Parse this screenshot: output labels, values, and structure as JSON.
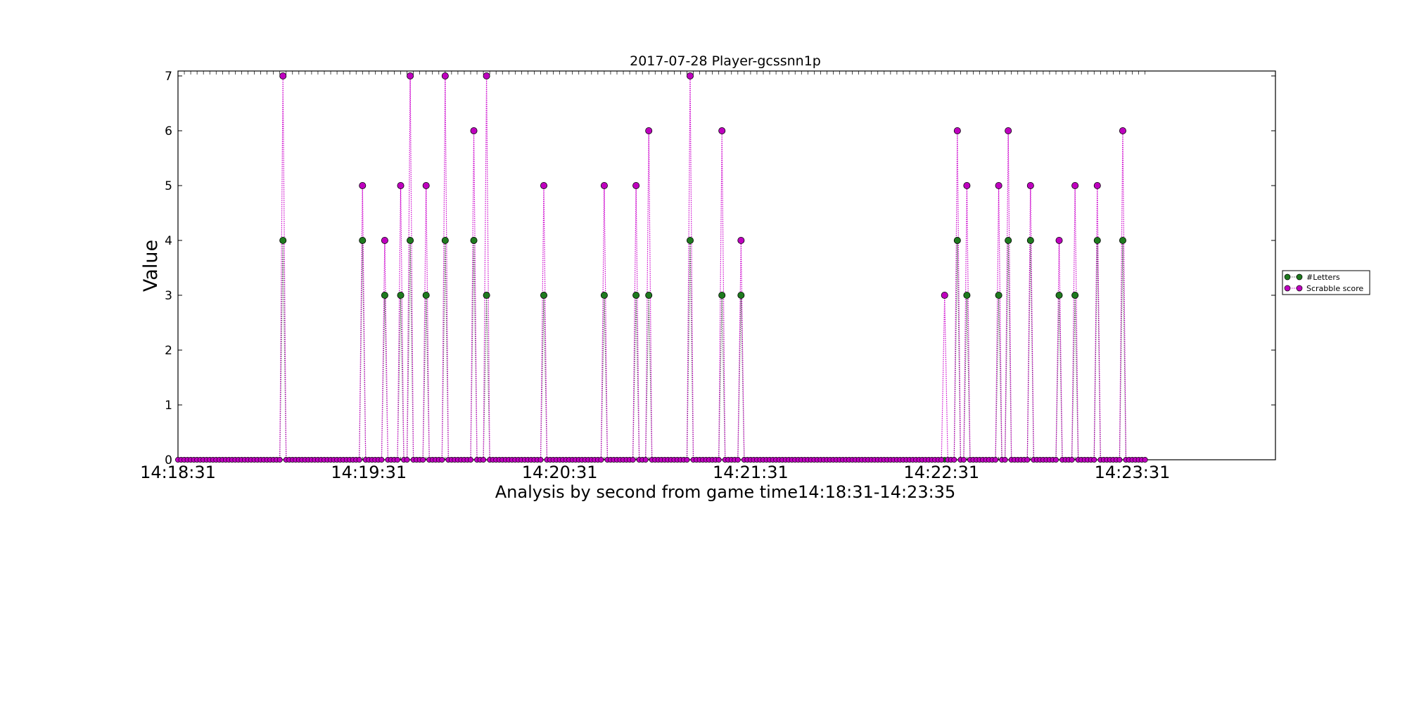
{
  "chart_data": {
    "type": "line",
    "title": "2017-07-28 Player-gcssnn1p",
    "xlabel": "Analysis by second from game time14:18:31-14:23:35",
    "ylabel": "Value",
    "x_start": "14:18:31",
    "x_end": "14:23:35",
    "xlim": [
      "14:18:31",
      "14:24:16"
    ],
    "ylim": [
      0,
      7
    ],
    "x_ticks": [
      "14:18:31",
      "14:19:31",
      "14:20:31",
      "14:21:31",
      "14:22:31",
      "14:23:31"
    ],
    "y_ticks": [
      0,
      1,
      2,
      3,
      4,
      5,
      6,
      7
    ],
    "legend_position": "right",
    "grid": false,
    "series": [
      {
        "name": "#Letters",
        "color": "#1f7a1f",
        "line_color": "#555555",
        "points": [
          [
            "14:19:04",
            4
          ],
          [
            "14:19:29",
            4
          ],
          [
            "14:19:36",
            3
          ],
          [
            "14:19:41",
            3
          ],
          [
            "14:19:44",
            4
          ],
          [
            "14:19:49",
            3
          ],
          [
            "14:19:55",
            4
          ],
          [
            "14:20:04",
            4
          ],
          [
            "14:20:08",
            3
          ],
          [
            "14:20:26",
            3
          ],
          [
            "14:20:45",
            3
          ],
          [
            "14:20:55",
            3
          ],
          [
            "14:20:59",
            3
          ],
          [
            "14:21:12",
            4
          ],
          [
            "14:21:22",
            3
          ],
          [
            "14:21:28",
            3
          ],
          [
            "14:22:36",
            4
          ],
          [
            "14:22:39",
            3
          ],
          [
            "14:22:49",
            3
          ],
          [
            "14:22:52",
            4
          ],
          [
            "14:22:59",
            4
          ],
          [
            "14:23:08",
            3
          ],
          [
            "14:23:13",
            3
          ],
          [
            "14:23:20",
            4
          ],
          [
            "14:23:28",
            4
          ]
        ]
      },
      {
        "name": "Scrabble score",
        "color": "#bf00bf",
        "line_color": "#cc00cc",
        "points": [
          [
            "14:19:04",
            7
          ],
          [
            "14:19:29",
            5
          ],
          [
            "14:19:36",
            4
          ],
          [
            "14:19:41",
            5
          ],
          [
            "14:19:44",
            7
          ],
          [
            "14:19:49",
            5
          ],
          [
            "14:19:55",
            7
          ],
          [
            "14:20:04",
            6
          ],
          [
            "14:20:08",
            7
          ],
          [
            "14:20:26",
            5
          ],
          [
            "14:20:45",
            5
          ],
          [
            "14:20:55",
            5
          ],
          [
            "14:20:59",
            6
          ],
          [
            "14:21:12",
            7
          ],
          [
            "14:21:22",
            6
          ],
          [
            "14:21:28",
            4
          ],
          [
            "14:22:32",
            3
          ],
          [
            "14:22:36",
            6
          ],
          [
            "14:22:39",
            5
          ],
          [
            "14:22:49",
            5
          ],
          [
            "14:22:52",
            6
          ],
          [
            "14:22:59",
            5
          ],
          [
            "14:23:08",
            4
          ],
          [
            "14:23:13",
            5
          ],
          [
            "14:23:20",
            5
          ],
          [
            "14:23:28",
            6
          ]
        ]
      }
    ]
  }
}
